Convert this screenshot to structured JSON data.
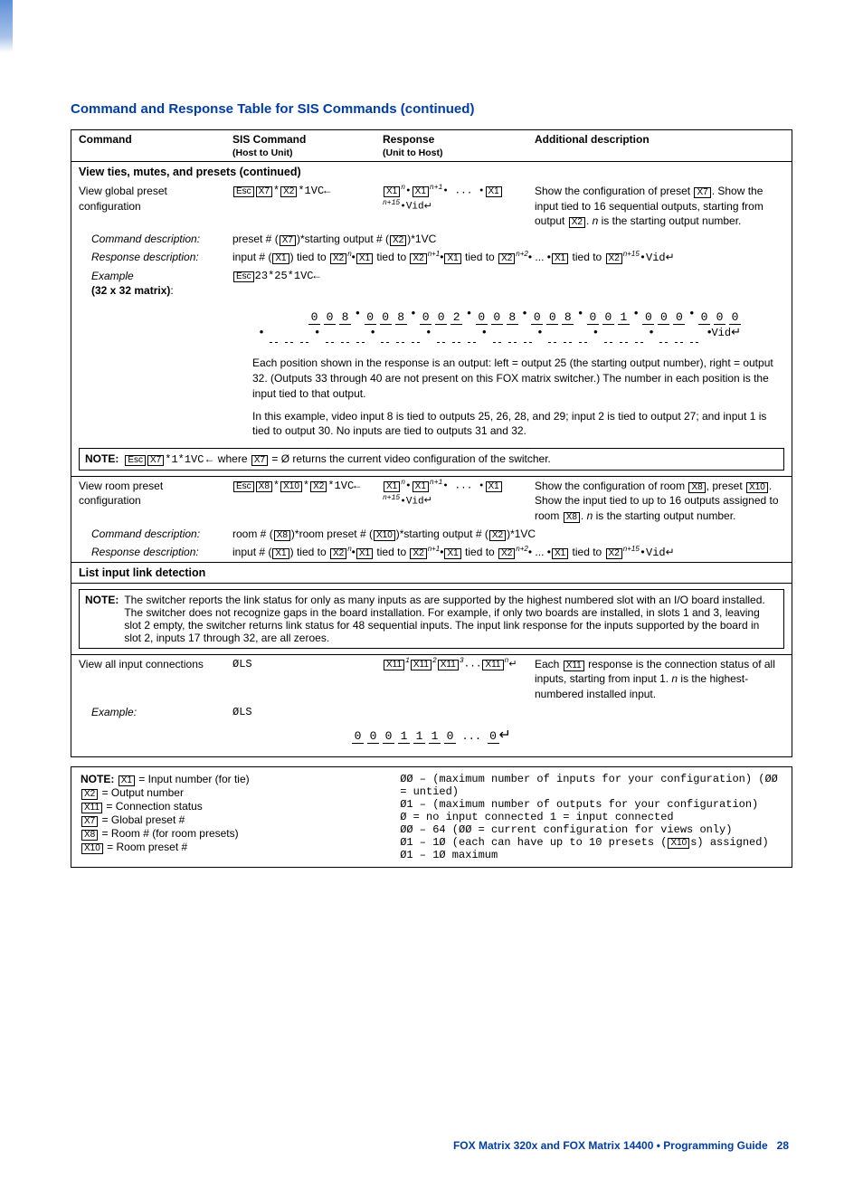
{
  "title": "Command and Response Table for SIS Commands (continued)",
  "hdr": {
    "c1": "Command",
    "c2": "SIS Command",
    "c2s": "(Host to Unit)",
    "c3": "Response",
    "c3s": "(Unit to Host)",
    "c4": "Additional description"
  },
  "sect1": "View ties, mutes, and presets (continued)",
  "r_vgp": {
    "label": "View global preset configuration",
    "sis_pre": "Esc",
    "sis_x7": "X7",
    "sis_x2": "X2",
    "sis_tail": "*1VC",
    "resp_x1": "X1",
    "resp_x2": "X2",
    "resp_vid": "Vid",
    "desc": "Show the configuration of preset ",
    "desc_box": "X7",
    "desc2": ". Show the input tied to 16 sequential outputs, starting from output ",
    "desc2_box": "X2",
    "desc3": ". ",
    "desc_n": "n",
    "desc4": " is the starting output number."
  },
  "r_cmddesc_lbl": "Command description:",
  "r_cmddesc": {
    "pre": "preset # ",
    "b1": "X7",
    "mid": "*starting output # ",
    "b2": "X2",
    "tail": "*1VC"
  },
  "r_rspdesc_lbl": "Response description:",
  "r_rspdesc": {
    "pre": "input # ",
    "b1": "X1",
    "t1": " tied to ",
    "b2": "X2",
    "n": "n",
    "b3": "X1",
    "b4": "X2",
    "n1": "n+1",
    "b5": "X1",
    "b6": "X2",
    "n2": "n+2",
    "dots": " ... •",
    "bL": "X1",
    "bR": "X2",
    "n15": "n+15",
    "tail": "•Vid"
  },
  "r_ex_lbl": "Example",
  "r_ex_sub": "(32 x 32 matrix)",
  "r_ex_sis": {
    "pre": "Esc",
    "body": "23*25*1VC"
  },
  "ex_seq": [
    "0",
    "0",
    "8",
    "0",
    "0",
    "8",
    "0",
    "0",
    "2",
    "0",
    "0",
    "8",
    "0",
    "0",
    "8",
    "0",
    "0",
    "1",
    "0",
    "0",
    "0",
    "0",
    "0",
    "0"
  ],
  "ex_dash_count": 24,
  "ex_tail": "Vid",
  "para1": "Each position shown in the response is an output: left = output 25 (the starting output number), right = output 32. (Outputs 33 through 40 are not present on this FOX matrix switcher.) The number in each position is the input tied to that output.",
  "para2": "In this example, video input 8 is tied to outputs 25, 26, 28, and 29; input 2 is tied to output 27; and input 1 is tied to output 30. No inputs are tied to outputs 31 and 32.",
  "note1": {
    "label": "NOTE:",
    "pre": "Esc",
    "x7": "X7",
    "body": "*1*1VC",
    "where1": " where ",
    "x7b": "X7",
    "where2": " = Ø returns the current video configuration of the switcher."
  },
  "r_vrp": {
    "label": "View room preset configuration",
    "sis": {
      "pre": "Esc",
      "x8": "X8",
      "x10": "X10",
      "x2": "X2",
      "tail": "*1VC"
    },
    "desc1": "Show the configuration of room ",
    "b1": "X8",
    "desc2": ", preset ",
    "b2": "X10",
    "desc3": ". Show the input tied to up to 16 outputs assigned to room ",
    "b3": "X8",
    "desc4": ". ",
    "n": "n",
    "desc5": " is the starting output number."
  },
  "r_vrp_cmddesc": {
    "pre": "room # ",
    "b1": "X8",
    "mid1": "*room preset # ",
    "b2": "X10",
    "mid2": "*starting output # ",
    "b3": "X2",
    "tail": "*1VC"
  },
  "sect2": "List input link detection",
  "note2": {
    "label": "NOTE:",
    "body": "The switcher reports the link status for only as many inputs as are supported by the highest numbered slot with an I/O board installed. The switcher does not recognize gaps in the board installation. For example, if only two boards are installed, in slots 1 and 3, leaving slot 2 empty, the switcher returns link status for 48 sequential inputs. The input link response for the inputs supported by the board in slot 2, inputs 17 through 32, are all zeroes."
  },
  "r_vall": {
    "label": "View all input connections",
    "sis": "ØLS",
    "resp_b": "X11",
    "desc1": "Each ",
    "b": "X11",
    "desc2": " response is the connection status of all inputs, starting from input 1. ",
    "n": "n",
    "desc3": " is the highest-numbered installed input."
  },
  "r_vall_ex_lbl": "Example:",
  "r_vall_ex_sis": "ØLS",
  "ex2_seq": [
    "0",
    "0",
    "0",
    "1",
    "1",
    "1",
    "0"
  ],
  "ex2_dots": "...",
  "ex2_last": "0",
  "legend": {
    "label": "NOTE:",
    "left": [
      {
        "b": "X1",
        "t": " = Input number (for tie)"
      },
      {
        "b": "X2",
        "t": " = Output number"
      },
      {
        "b": "X11",
        "t": " = Connection status"
      },
      {
        "b": "X7",
        "t": " = Global preset #"
      },
      {
        "b": "X8",
        "t": " = Room # (for room presets)"
      },
      {
        "b": "X10",
        "t": " = Room preset #"
      }
    ],
    "right": [
      "ØØ – (maximum number of inputs for your configuration) (ØØ = untied)",
      "Ø1 – (maximum number of outputs for your configuration)",
      "Ø = no input connected    1 = input connected",
      "ØØ – 64 (ØØ = current configuration for views only)",
      "Ø1 – 1Ø (each can have up to 10 presets (X10s) assigned)",
      "Ø1 – 1Ø maximum"
    ],
    "right_box_idx": 4,
    "right_box": "X10"
  },
  "footer": {
    "a": "FOX Matrix 320x and FOX Matrix 14400 • Programming Guide",
    "b": "28"
  },
  "colors": {
    "brand": "#003da6",
    "text": "#000000",
    "bar_top": "#5f8fd8"
  }
}
